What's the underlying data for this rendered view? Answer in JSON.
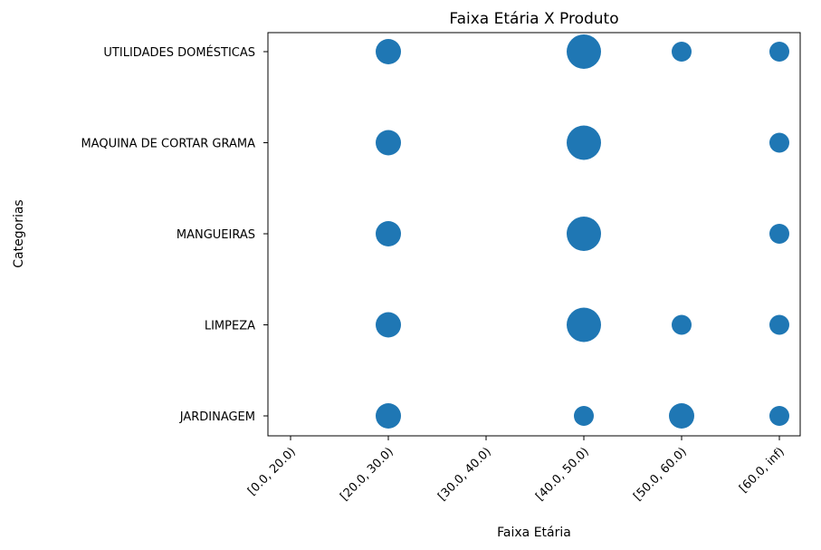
{
  "chart_data": {
    "type": "scatter",
    "title": "Faixa Etária X Produto",
    "xlabel": "Faixa Etária",
    "ylabel": "Categorias",
    "x_categories": [
      "[0.0, 20.0)",
      "[20.0, 30.0)",
      "[30.0, 40.0)",
      "[40.0, 50.0)",
      "[50.0, 60.0)",
      "[60.0, inf)"
    ],
    "y_categories": [
      "JARDINAGEM",
      "LIMPEZA",
      "MANGUEIRAS",
      "MAQUINA DE CORTAR GRAMA",
      "UTILIDADES DOMÉSTICAS"
    ],
    "grid": false,
    "marker_color": "#1f77b4",
    "points": [
      {
        "x": "[20.0, 30.0)",
        "y": "UTILIDADES DOMÉSTICAS",
        "size": 2
      },
      {
        "x": "[40.0, 50.0)",
        "y": "UTILIDADES DOMÉSTICAS",
        "size": 4
      },
      {
        "x": "[50.0, 60.0)",
        "y": "UTILIDADES DOMÉSTICAS",
        "size": 1
      },
      {
        "x": "[60.0, inf)",
        "y": "UTILIDADES DOMÉSTICAS",
        "size": 1
      },
      {
        "x": "[20.0, 30.0)",
        "y": "MAQUINA DE CORTAR GRAMA",
        "size": 2
      },
      {
        "x": "[40.0, 50.0)",
        "y": "MAQUINA DE CORTAR GRAMA",
        "size": 4
      },
      {
        "x": "[60.0, inf)",
        "y": "MAQUINA DE CORTAR GRAMA",
        "size": 1
      },
      {
        "x": "[20.0, 30.0)",
        "y": "MANGUEIRAS",
        "size": 2
      },
      {
        "x": "[40.0, 50.0)",
        "y": "MANGUEIRAS",
        "size": 4
      },
      {
        "x": "[60.0, inf)",
        "y": "MANGUEIRAS",
        "size": 1
      },
      {
        "x": "[20.0, 30.0)",
        "y": "LIMPEZA",
        "size": 2
      },
      {
        "x": "[40.0, 50.0)",
        "y": "LIMPEZA",
        "size": 4
      },
      {
        "x": "[50.0, 60.0)",
        "y": "LIMPEZA",
        "size": 1
      },
      {
        "x": "[60.0, inf)",
        "y": "LIMPEZA",
        "size": 1
      },
      {
        "x": "[20.0, 30.0)",
        "y": "JARDINAGEM",
        "size": 2
      },
      {
        "x": "[40.0, 50.0)",
        "y": "JARDINAGEM",
        "size": 1
      },
      {
        "x": "[50.0, 60.0)",
        "y": "JARDINAGEM",
        "size": 2
      },
      {
        "x": "[60.0, inf)",
        "y": "JARDINAGEM",
        "size": 1
      }
    ]
  }
}
